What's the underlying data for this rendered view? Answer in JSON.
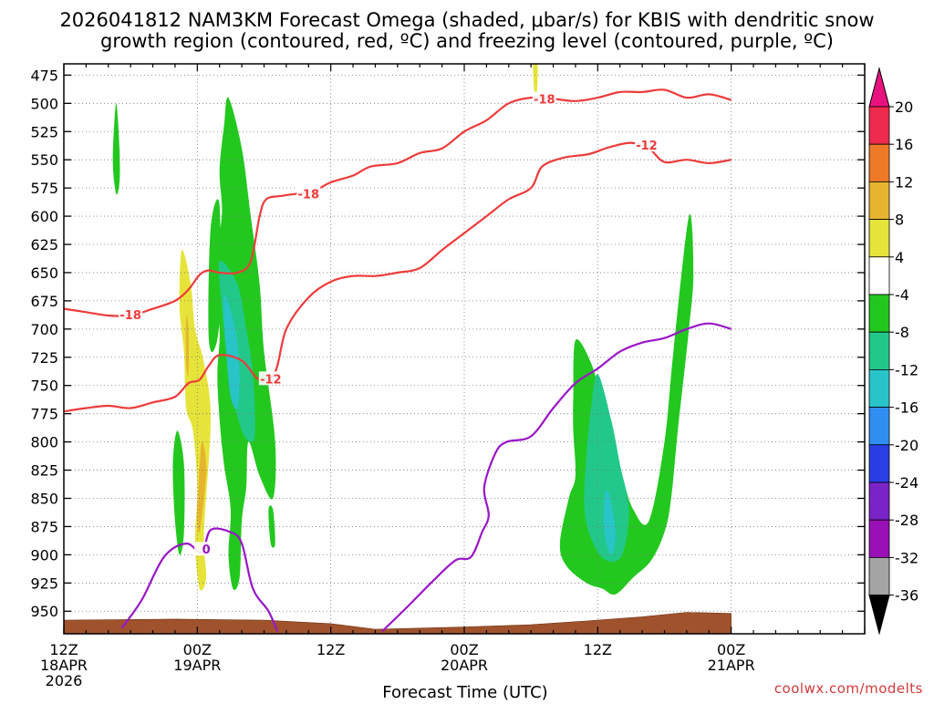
{
  "chart_data": {
    "type": "heatmap",
    "title_lines": [
      "2026041812 NAM3KM Forecast Omega (shaded, μbar/s) for KBIS with dendritic snow",
      "growth region (contoured, red, ºC) and freezing level (contoured, purple, ºC)"
    ],
    "xlabel": "Forecast Time (UTC)",
    "credit": "coolwx.com/modelts",
    "y_axis": {
      "unit": "hPa",
      "range": [
        970,
        465
      ],
      "ticks": [
        475,
        500,
        525,
        550,
        575,
        600,
        625,
        650,
        675,
        700,
        725,
        750,
        775,
        800,
        825,
        850,
        875,
        900,
        925,
        950
      ]
    },
    "x_axis": {
      "range_hours": [
        0,
        36
      ],
      "ticks": [
        {
          "hour": 0,
          "lines": [
            "12Z",
            "18APR",
            "2026"
          ]
        },
        {
          "hour": 6,
          "lines": [
            "00Z",
            "19APR"
          ]
        },
        {
          "hour": 12,
          "lines": [
            "12Z"
          ]
        },
        {
          "hour": 18,
          "lines": [
            "00Z",
            "20APR"
          ]
        },
        {
          "hour": 24,
          "lines": [
            "12Z"
          ]
        },
        {
          "hour": 30,
          "lines": [
            "00Z",
            "21APR"
          ]
        }
      ]
    },
    "colorbar": {
      "levels": [
        20,
        16,
        12,
        8,
        4,
        -4,
        -8,
        -12,
        -16,
        -20,
        -24,
        -28,
        -32,
        -36
      ],
      "colors": [
        "#ee2a4e",
        "#ee7a28",
        "#e6b42e",
        "#e6e43a",
        "#ffffff",
        "#22c81e",
        "#22c88a",
        "#28c4c8",
        "#2f8ef0",
        "#2a3ee6",
        "#7a24c8",
        "#9a10b6",
        "#a4a4a4"
      ],
      "cap_top_color": "#e8127e",
      "cap_bottom_color": "#000000"
    },
    "shaded_regions": [
      {
        "name": "green",
        "color": "#22c81e",
        "points": [
          [
            2.35,
            500
          ],
          [
            2.5,
            540
          ],
          [
            2.5,
            570
          ],
          [
            2.35,
            580
          ],
          [
            2.2,
            550
          ]
        ]
      },
      {
        "name": "green",
        "color": "#22c81e",
        "points": [
          [
            7.4,
            495
          ],
          [
            8.0,
            540
          ],
          [
            8.4,
            600
          ],
          [
            8.8,
            660
          ],
          [
            9.0,
            720
          ],
          [
            9.5,
            800
          ],
          [
            9.4,
            850
          ],
          [
            8.8,
            830
          ],
          [
            8.3,
            800
          ],
          [
            8.2,
            840
          ],
          [
            8.0,
            870
          ],
          [
            7.9,
            920
          ],
          [
            7.6,
            930
          ],
          [
            7.4,
            900
          ],
          [
            7.5,
            860
          ],
          [
            7.2,
            820
          ],
          [
            7.0,
            780
          ],
          [
            6.9,
            740
          ],
          [
            7.0,
            700
          ],
          [
            6.7,
            650
          ],
          [
            7.1,
            600
          ],
          [
            7.0,
            560
          ],
          [
            7.2,
            520
          ]
        ]
      },
      {
        "name": "green",
        "color": "#22c81e",
        "points": [
          [
            7.0,
            590
          ],
          [
            6.6,
            610
          ],
          [
            6.5,
            700
          ],
          [
            6.7,
            720
          ],
          [
            7.0,
            690
          ]
        ]
      },
      {
        "name": "green",
        "color": "#22c81e",
        "points": [
          [
            9.4,
            860
          ],
          [
            9.5,
            890
          ],
          [
            9.3,
            890
          ],
          [
            9.2,
            860
          ]
        ]
      },
      {
        "name": "green",
        "color": "#22c81e",
        "points": [
          [
            5.1,
            790
          ],
          [
            5.4,
            820
          ],
          [
            5.4,
            880
          ],
          [
            5.2,
            900
          ],
          [
            5.0,
            870
          ],
          [
            4.9,
            820
          ]
        ]
      },
      {
        "name": "green",
        "color": "#22c81e",
        "points": [
          [
            23.0,
            710
          ],
          [
            23.7,
            730
          ],
          [
            24.2,
            765
          ],
          [
            24.6,
            790
          ],
          [
            25.1,
            830
          ],
          [
            25.6,
            860
          ],
          [
            26.3,
            870
          ],
          [
            27.0,
            800
          ],
          [
            27.4,
            720
          ],
          [
            28.1,
            600
          ],
          [
            28.3,
            650
          ],
          [
            28.1,
            700
          ],
          [
            27.6,
            790
          ],
          [
            27.3,
            850
          ],
          [
            27.0,
            880
          ],
          [
            26.4,
            905
          ],
          [
            25.6,
            920
          ],
          [
            24.8,
            935
          ],
          [
            24.2,
            930
          ],
          [
            23.5,
            925
          ],
          [
            22.6,
            910
          ],
          [
            22.3,
            890
          ],
          [
            22.7,
            850
          ],
          [
            23.0,
            830
          ],
          [
            22.9,
            790
          ],
          [
            22.9,
            760
          ]
        ]
      },
      {
        "name": "teal",
        "color": "#22c88a",
        "points": [
          [
            7.0,
            640
          ],
          [
            7.8,
            660
          ],
          [
            8.2,
            700
          ],
          [
            8.5,
            740
          ],
          [
            8.6,
            790
          ],
          [
            8.4,
            800
          ],
          [
            8.0,
            790
          ],
          [
            7.6,
            760
          ],
          [
            7.3,
            720
          ],
          [
            7.1,
            680
          ]
        ]
      },
      {
        "name": "teal",
        "color": "#22c88a",
        "points": [
          [
            24.0,
            740
          ],
          [
            24.6,
            780
          ],
          [
            25.0,
            820
          ],
          [
            25.4,
            860
          ],
          [
            25.1,
            900
          ],
          [
            24.4,
            905
          ],
          [
            23.8,
            890
          ],
          [
            23.4,
            860
          ],
          [
            23.5,
            810
          ],
          [
            23.7,
            770
          ]
        ]
      },
      {
        "name": "cyan",
        "color": "#28c4c8",
        "points": [
          [
            7.2,
            670
          ],
          [
            7.7,
            700
          ],
          [
            7.9,
            740
          ],
          [
            7.8,
            770
          ],
          [
            7.5,
            760
          ],
          [
            7.3,
            720
          ]
        ]
      },
      {
        "name": "cyan",
        "color": "#28c4c8",
        "points": [
          [
            24.5,
            845
          ],
          [
            24.8,
            880
          ],
          [
            24.6,
            900
          ],
          [
            24.3,
            880
          ],
          [
            24.3,
            850
          ]
        ]
      },
      {
        "name": "yellow",
        "color": "#e6e43a",
        "points": [
          [
            5.3,
            630
          ],
          [
            5.7,
            660
          ],
          [
            5.9,
            700
          ],
          [
            6.3,
            730
          ],
          [
            6.6,
            780
          ],
          [
            6.3,
            880
          ],
          [
            6.4,
            920
          ],
          [
            6.1,
            930
          ],
          [
            5.9,
            890
          ],
          [
            6.0,
            840
          ],
          [
            5.8,
            790
          ],
          [
            5.5,
            770
          ],
          [
            5.4,
            720
          ],
          [
            5.2,
            680
          ]
        ]
      },
      {
        "name": "yellow",
        "color": "#e6e43a",
        "points": [
          [
            21.1,
            465
          ],
          [
            21.3,
            465
          ],
          [
            21.25,
            495
          ],
          [
            21.15,
            490
          ]
        ]
      },
      {
        "name": "orange",
        "color": "#e6b42e",
        "points": [
          [
            5.5,
            690
          ],
          [
            5.6,
            700
          ],
          [
            5.6,
            740
          ],
          [
            5.5,
            730
          ]
        ]
      },
      {
        "name": "orange",
        "color": "#e6b42e",
        "points": [
          [
            6.2,
            800
          ],
          [
            6.4,
            820
          ],
          [
            6.3,
            850
          ],
          [
            6.1,
            880
          ],
          [
            6.0,
            870
          ],
          [
            6.05,
            840
          ]
        ]
      }
    ],
    "contours": [
      {
        "label": "-18",
        "color": "#ee3b3b",
        "points": [
          [
            0,
            682
          ],
          [
            1,
            685
          ],
          [
            2,
            688
          ],
          [
            3,
            688
          ],
          [
            4,
            682
          ],
          [
            5,
            675
          ],
          [
            5.6,
            665
          ],
          [
            6.1,
            652
          ],
          [
            6.5,
            648
          ],
          [
            7.0,
            650
          ],
          [
            7.8,
            650
          ],
          [
            8.4,
            640
          ],
          [
            8.8,
            600
          ],
          [
            9.1,
            585
          ],
          [
            9.8,
            582
          ],
          [
            10.5,
            580
          ],
          [
            11.2,
            578
          ],
          [
            12,
            570
          ],
          [
            13,
            564
          ],
          [
            13.8,
            556
          ],
          [
            15,
            553
          ],
          [
            16,
            544
          ],
          [
            17,
            540
          ],
          [
            18,
            525
          ],
          [
            19,
            515
          ],
          [
            20,
            500
          ],
          [
            21,
            495
          ],
          [
            22,
            496
          ],
          [
            23,
            498
          ],
          [
            24,
            495
          ],
          [
            25,
            490
          ],
          [
            26,
            490
          ],
          [
            27,
            488
          ],
          [
            28,
            495
          ],
          [
            29,
            492
          ],
          [
            30,
            497
          ]
        ]
      },
      {
        "label": "-12",
        "color": "#ee3b3b",
        "points": [
          [
            0,
            773
          ],
          [
            1,
            770
          ],
          [
            2,
            768
          ],
          [
            3,
            770
          ],
          [
            4,
            765
          ],
          [
            5,
            760
          ],
          [
            5.6,
            748
          ],
          [
            6.1,
            745
          ],
          [
            6.5,
            733
          ],
          [
            7.0,
            723
          ],
          [
            8.0,
            728
          ],
          [
            8.8,
            745
          ],
          [
            9.5,
            738
          ],
          [
            10,
            700
          ],
          [
            11,
            672
          ],
          [
            12,
            658
          ],
          [
            13,
            653
          ],
          [
            14,
            653
          ],
          [
            15,
            650
          ],
          [
            16,
            646
          ],
          [
            17,
            630
          ],
          [
            18,
            615
          ],
          [
            19,
            600
          ],
          [
            20,
            585
          ],
          [
            21,
            575
          ],
          [
            21.5,
            556
          ],
          [
            22.5,
            548
          ],
          [
            23.6,
            545
          ],
          [
            24.5,
            539
          ],
          [
            25.5,
            535
          ],
          [
            26.3,
            540
          ],
          [
            27,
            552
          ],
          [
            28,
            550
          ],
          [
            29,
            553
          ],
          [
            30,
            550
          ]
        ]
      },
      {
        "label": "0",
        "color": "#9a16c8",
        "points": [
          [
            2.6,
            965
          ],
          [
            3.5,
            940
          ],
          [
            4.5,
            902
          ],
          [
            5.5,
            890
          ],
          [
            6.2,
            898
          ],
          [
            6.6,
            878
          ],
          [
            7.5,
            880
          ],
          [
            8.0,
            890
          ],
          [
            8.5,
            930
          ],
          [
            9.2,
            950
          ],
          [
            9.6,
            968
          ]
        ]
      },
      {
        "label": "0",
        "color": "#9a16c8",
        "points": [
          [
            14.3,
            968
          ],
          [
            15.5,
            945
          ],
          [
            16.5,
            925
          ],
          [
            17.6,
            905
          ],
          [
            18.3,
            902
          ],
          [
            18.8,
            880
          ],
          [
            19.1,
            865
          ],
          [
            18.9,
            840
          ],
          [
            19.4,
            810
          ],
          [
            19.9,
            800
          ],
          [
            21,
            795
          ],
          [
            22,
            770
          ],
          [
            23,
            748
          ],
          [
            24,
            735
          ],
          [
            25,
            720
          ],
          [
            26,
            712
          ],
          [
            27,
            708
          ],
          [
            28,
            700
          ],
          [
            29,
            695
          ],
          [
            30,
            700
          ]
        ]
      }
    ],
    "contour_labels": [
      {
        "text": "-18",
        "x": 3.0,
        "y": 687,
        "color": "#ee3b3b"
      },
      {
        "text": "-12",
        "x": 9.3,
        "y": 744,
        "color": "#ee3b3b"
      },
      {
        "text": "-18",
        "x": 11.0,
        "y": 580,
        "color": "#ee3b3b"
      },
      {
        "text": "-18",
        "x": 21.6,
        "y": 496,
        "color": "#ee3b3b"
      },
      {
        "text": "-12",
        "x": 26.2,
        "y": 537,
        "color": "#ee3b3b"
      },
      {
        "text": "0",
        "x": 6.4,
        "y": 895,
        "color": "#9a16c8"
      }
    ],
    "terrain": {
      "color": "#a0522d",
      "points": [
        [
          0,
          958
        ],
        [
          5,
          957
        ],
        [
          9,
          958
        ],
        [
          12,
          961
        ],
        [
          14,
          966
        ],
        [
          16,
          965
        ],
        [
          18,
          964
        ],
        [
          21,
          962
        ],
        [
          24,
          958
        ],
        [
          26,
          955
        ],
        [
          28,
          951
        ],
        [
          30,
          952
        ]
      ]
    }
  }
}
